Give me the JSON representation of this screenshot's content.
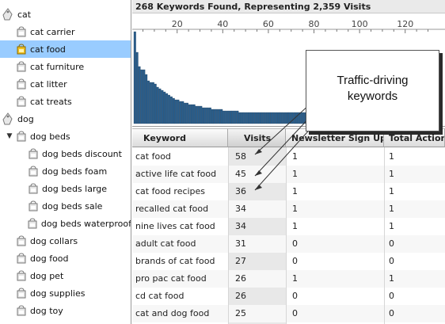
{
  "sidebar": {
    "items": [
      {
        "label": "cat",
        "level": 0,
        "icon": "tag-icon",
        "expander": ""
      },
      {
        "label": "cat carrier",
        "level": 1,
        "icon": "bag-icon"
      },
      {
        "label": "cat food",
        "level": 1,
        "icon": "bag-icon",
        "selected": true
      },
      {
        "label": "cat furniture",
        "level": 1,
        "icon": "bag-icon"
      },
      {
        "label": "cat litter",
        "level": 1,
        "icon": "bag-icon"
      },
      {
        "label": "cat treats",
        "level": 1,
        "icon": "bag-icon"
      },
      {
        "label": "dog",
        "level": 0,
        "icon": "tag-icon",
        "expander": ""
      },
      {
        "label": "dog beds",
        "level": 1,
        "icon": "bag-icon",
        "expander": "▼"
      },
      {
        "label": "dog beds discount",
        "level": 2,
        "icon": "bag-icon"
      },
      {
        "label": "dog beds foam",
        "level": 2,
        "icon": "bag-icon"
      },
      {
        "label": "dog beds large",
        "level": 2,
        "icon": "bag-icon"
      },
      {
        "label": "dog beds sale",
        "level": 2,
        "icon": "bag-icon"
      },
      {
        "label": "dog beds waterproof",
        "level": 2,
        "icon": "bag-icon"
      },
      {
        "label": "dog collars",
        "level": 1,
        "icon": "bag-icon"
      },
      {
        "label": "dog food",
        "level": 1,
        "icon": "bag-icon"
      },
      {
        "label": "dog pet",
        "level": 1,
        "icon": "bag-icon"
      },
      {
        "label": "dog supplies",
        "level": 1,
        "icon": "bag-icon"
      },
      {
        "label": "dog toy",
        "level": 1,
        "icon": "bag-icon"
      }
    ]
  },
  "summary": "268 Keywords Found, Representing 2,359 Visits",
  "chart_data": {
    "type": "bar",
    "x_ticks": [
      "20",
      "40",
      "60",
      "80",
      "100",
      "120"
    ],
    "xlim": [
      1,
      130
    ],
    "ylim": [
      0,
      58
    ],
    "bar_color": "#2a5d8a",
    "values": [
      58,
      45,
      36,
      34,
      34,
      31,
      27,
      26,
      26,
      25,
      23,
      22,
      21,
      20,
      19,
      18,
      17,
      16,
      15,
      15,
      14,
      14,
      13,
      13,
      12,
      12,
      12,
      11,
      11,
      11,
      10,
      10,
      10,
      10,
      9,
      9,
      9,
      9,
      9,
      8,
      8,
      8,
      8,
      8,
      8,
      8,
      7,
      7,
      7,
      7,
      7,
      7,
      7,
      7,
      7,
      7,
      7,
      7,
      7,
      7,
      7,
      7,
      7,
      7,
      7,
      7,
      7,
      7,
      7,
      7,
      7,
      7,
      7,
      7,
      7,
      7,
      7,
      7,
      7,
      7,
      7,
      7,
      7,
      7,
      7,
      7,
      7,
      7,
      7,
      7,
      7,
      7,
      7,
      7,
      7,
      7,
      7,
      7,
      7,
      7,
      7,
      7,
      7,
      7,
      7,
      7,
      7,
      7,
      7,
      7,
      7,
      7,
      7,
      7,
      7,
      7,
      7,
      7,
      7,
      7,
      7,
      7,
      7,
      7,
      7,
      7,
      7,
      7,
      7,
      7
    ]
  },
  "table": {
    "columns": [
      "Keyword",
      "Visits",
      "Newsletter Sign Up",
      "Total Action"
    ],
    "rows": [
      {
        "keyword": "cat food",
        "visits": "58",
        "newsletter": "1",
        "total": "1"
      },
      {
        "keyword": "active life cat food",
        "visits": "45",
        "newsletter": "1",
        "total": "1"
      },
      {
        "keyword": "cat food recipes",
        "visits": "36",
        "newsletter": "1",
        "total": "1"
      },
      {
        "keyword": "recalled cat food",
        "visits": "34",
        "newsletter": "1",
        "total": "1"
      },
      {
        "keyword": "nine lives cat food",
        "visits": "34",
        "newsletter": "1",
        "total": "1"
      },
      {
        "keyword": "adult cat food",
        "visits": "31",
        "newsletter": "0",
        "total": "0"
      },
      {
        "keyword": "brands of cat food",
        "visits": "27",
        "newsletter": "0",
        "total": "0"
      },
      {
        "keyword": "pro pac cat food",
        "visits": "26",
        "newsletter": "1",
        "total": "1"
      },
      {
        "keyword": "cd cat food",
        "visits": "26",
        "newsletter": "0",
        "total": "0"
      },
      {
        "keyword": "cat and dog food",
        "visits": "25",
        "newsletter": "0",
        "total": "0"
      }
    ]
  },
  "callout": {
    "line1": "Traffic-driving",
    "line2": "keywords"
  }
}
